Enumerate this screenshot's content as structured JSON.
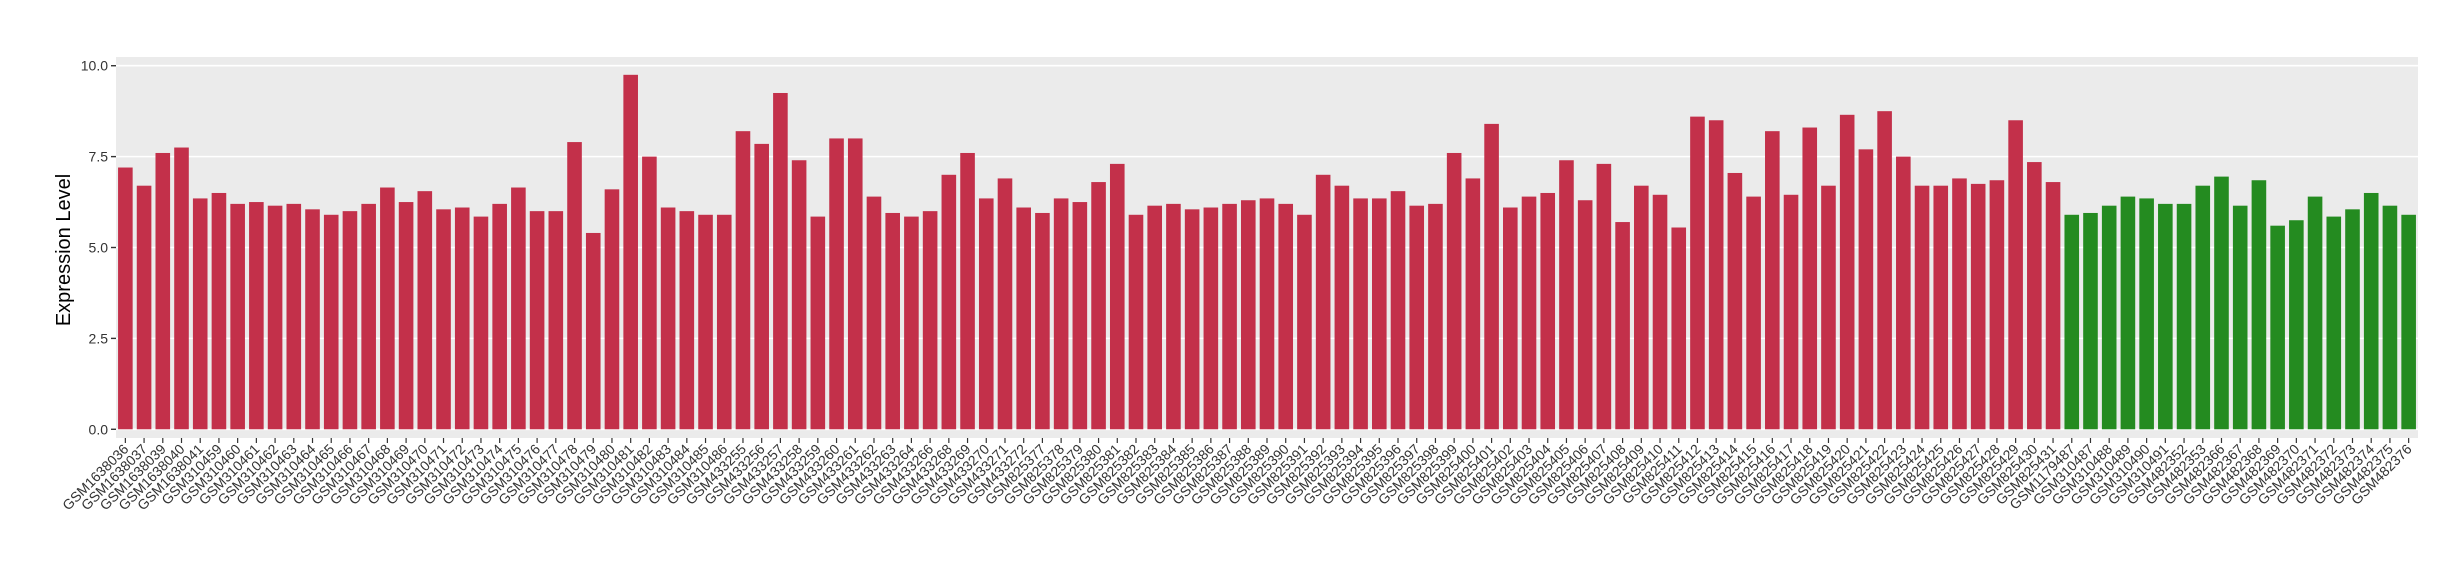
{
  "chart_data": {
    "type": "bar",
    "y_label": "Expression Level",
    "categories": [
      "GSM1638036",
      "GSM1638037",
      "GSM1638039",
      "GSM1638040",
      "GSM1638041",
      "GSM310459",
      "GSM310460",
      "GSM310461",
      "GSM310462",
      "GSM310463",
      "GSM310464",
      "GSM310465",
      "GSM310466",
      "GSM310467",
      "GSM310468",
      "GSM310469",
      "GSM310470",
      "GSM310471",
      "GSM310472",
      "GSM310473",
      "GSM310474",
      "GSM310475",
      "GSM310476",
      "GSM310477",
      "GSM310478",
      "GSM310479",
      "GSM310480",
      "GSM310481",
      "GSM310482",
      "GSM310483",
      "GSM310484",
      "GSM310485",
      "GSM310486",
      "GSM433255",
      "GSM433256",
      "GSM433257",
      "GSM433258",
      "GSM433259",
      "GSM433260",
      "GSM433261",
      "GSM433262",
      "GSM433263",
      "GSM433264",
      "GSM433266",
      "GSM433268",
      "GSM433269",
      "GSM433270",
      "GSM433271",
      "GSM433272",
      "GSM825377",
      "GSM825378",
      "GSM825379",
      "GSM825380",
      "GSM825381",
      "GSM825382",
      "GSM825383",
      "GSM825384",
      "GSM825385",
      "GSM825386",
      "GSM825387",
      "GSM825388",
      "GSM825389",
      "GSM825390",
      "GSM825391",
      "GSM825392",
      "GSM825393",
      "GSM825394",
      "GSM825395",
      "GSM825396",
      "GSM825397",
      "GSM825398",
      "GSM825399",
      "GSM825400",
      "GSM825401",
      "GSM825402",
      "GSM825403",
      "GSM825404",
      "GSM825405",
      "GSM825406",
      "GSM825407",
      "GSM825408",
      "GSM825409",
      "GSM825410",
      "GSM825411",
      "GSM825412",
      "GSM825413",
      "GSM825414",
      "GSM825415",
      "GSM825416",
      "GSM825417",
      "GSM825418",
      "GSM825419",
      "GSM825420",
      "GSM825421",
      "GSM825422",
      "GSM825423",
      "GSM825424",
      "GSM825425",
      "GSM825426",
      "GSM825427",
      "GSM825428",
      "GSM825429",
      "GSM825430",
      "GSM825431",
      "GSM1179487",
      "GSM310487",
      "GSM310488",
      "GSM310489",
      "GSM310490",
      "GSM310491",
      "GSM482352",
      "GSM482353",
      "GSM482366",
      "GSM482367",
      "GSM482368",
      "GSM482369",
      "GSM482370",
      "GSM482371",
      "GSM482372",
      "GSM482373",
      "GSM482374",
      "GSM482375",
      "GSM482376"
    ],
    "values": [
      7.2,
      6.7,
      7.6,
      7.75,
      6.35,
      6.5,
      6.2,
      6.25,
      6.15,
      6.2,
      6.05,
      5.9,
      6.0,
      6.2,
      6.65,
      6.25,
      6.55,
      6.05,
      6.1,
      5.85,
      6.2,
      6.65,
      6.0,
      6.0,
      7.9,
      5.4,
      6.6,
      9.75,
      7.5,
      6.1,
      6.0,
      5.9,
      5.9,
      8.2,
      7.85,
      9.25,
      7.4,
      5.85,
      8.0,
      8.0,
      6.4,
      5.95,
      5.85,
      6.0,
      7.0,
      7.6,
      6.35,
      6.9,
      6.1,
      5.95,
      6.35,
      6.25,
      6.8,
      7.3,
      5.9,
      6.15,
      6.2,
      6.05,
      6.1,
      6.2,
      6.3,
      6.35,
      6.2,
      5.9,
      7.0,
      6.7,
      6.35,
      6.35,
      6.55,
      6.15,
      6.2,
      7.6,
      6.9,
      8.4,
      6.1,
      6.4,
      6.5,
      7.4,
      6.3,
      7.3,
      5.7,
      6.7,
      6.45,
      5.55,
      8.6,
      8.5,
      7.05,
      6.4,
      8.2,
      6.45,
      8.3,
      6.7,
      8.65,
      7.7,
      8.75,
      7.5,
      6.7,
      6.7,
      6.9,
      6.75,
      6.85,
      8.5,
      7.35,
      6.8,
      5.9,
      5.95,
      6.15,
      6.4,
      6.35,
      6.2,
      6.2,
      6.7,
      6.95,
      6.15,
      6.85,
      5.6,
      5.75,
      6.4,
      5.85,
      6.05,
      6.5,
      6.15,
      5.9
    ],
    "colors": [
      "#c3304a",
      "#c3304a",
      "#c3304a",
      "#c3304a",
      "#c3304a",
      "#c3304a",
      "#c3304a",
      "#c3304a",
      "#c3304a",
      "#c3304a",
      "#c3304a",
      "#c3304a",
      "#c3304a",
      "#c3304a",
      "#c3304a",
      "#c3304a",
      "#c3304a",
      "#c3304a",
      "#c3304a",
      "#c3304a",
      "#c3304a",
      "#c3304a",
      "#c3304a",
      "#c3304a",
      "#c3304a",
      "#c3304a",
      "#c3304a",
      "#c3304a",
      "#c3304a",
      "#c3304a",
      "#c3304a",
      "#c3304a",
      "#c3304a",
      "#c3304a",
      "#c3304a",
      "#c3304a",
      "#c3304a",
      "#c3304a",
      "#c3304a",
      "#c3304a",
      "#c3304a",
      "#c3304a",
      "#c3304a",
      "#c3304a",
      "#c3304a",
      "#c3304a",
      "#c3304a",
      "#c3304a",
      "#c3304a",
      "#c3304a",
      "#c3304a",
      "#c3304a",
      "#c3304a",
      "#c3304a",
      "#c3304a",
      "#c3304a",
      "#c3304a",
      "#c3304a",
      "#c3304a",
      "#c3304a",
      "#c3304a",
      "#c3304a",
      "#c3304a",
      "#c3304a",
      "#c3304a",
      "#c3304a",
      "#c3304a",
      "#c3304a",
      "#c3304a",
      "#c3304a",
      "#c3304a",
      "#c3304a",
      "#c3304a",
      "#c3304a",
      "#c3304a",
      "#c3304a",
      "#c3304a",
      "#c3304a",
      "#c3304a",
      "#c3304a",
      "#c3304a",
      "#c3304a",
      "#c3304a",
      "#c3304a",
      "#c3304a",
      "#c3304a",
      "#c3304a",
      "#c3304a",
      "#c3304a",
      "#c3304a",
      "#c3304a",
      "#c3304a",
      "#c3304a",
      "#c3304a",
      "#c3304a",
      "#c3304a",
      "#c3304a",
      "#c3304a",
      "#c3304a",
      "#c3304a",
      "#c3304a",
      "#c3304a",
      "#c3304a",
      "#c3304a",
      "#248b20",
      "#248b20",
      "#248b20",
      "#248b20",
      "#248b20",
      "#248b20",
      "#248b20",
      "#248b20",
      "#248b20",
      "#248b20",
      "#248b20",
      "#248b20",
      "#248b20",
      "#248b20",
      "#248b20",
      "#248b20",
      "#248b20",
      "#248b20",
      "#248b20"
    ],
    "ylim": [
      -0.24,
      10.24
    ],
    "yticks": [
      {
        "value": 0,
        "label": "0.0"
      },
      {
        "value": 2.5,
        "label": "2.5"
      },
      {
        "value": 5,
        "label": "5.0"
      },
      {
        "value": 7.5,
        "label": "7.5"
      },
      {
        "value": 10,
        "label": "10.0"
      }
    ],
    "grid": true
  }
}
